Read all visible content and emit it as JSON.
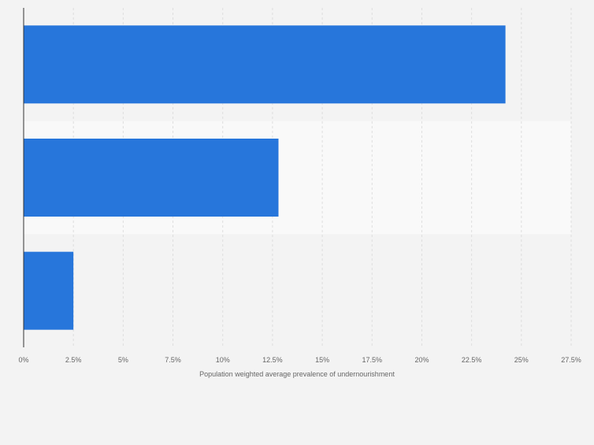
{
  "chart_data": {
    "type": "bar",
    "orientation": "horizontal",
    "title": "",
    "xlabel": "Population weighted average prevalence of undernourishment",
    "ylabel": "",
    "categories": [
      "",
      "",
      ""
    ],
    "values": [
      24.2,
      12.8,
      2.5
    ],
    "xlim": [
      0,
      27.5
    ],
    "x_ticks": [
      0,
      2.5,
      5,
      7.5,
      10,
      12.5,
      15,
      17.5,
      20,
      22.5,
      25,
      27.5
    ],
    "x_tick_labels": [
      "0%",
      "2.5%",
      "5%",
      "7.5%",
      "10%",
      "12.5%",
      "15%",
      "17.5%",
      "20%",
      "22.5%",
      "25%",
      "27.5%"
    ],
    "grid": true,
    "legend": "none",
    "colors": {
      "bar": "#2776db",
      "page_background": "#f3f3f3",
      "band_light": "#f9f9f9",
      "band_dark": "#f3f3f3",
      "grid": "#dedede",
      "axis": "#333333",
      "tick_text": "#666666"
    }
  }
}
